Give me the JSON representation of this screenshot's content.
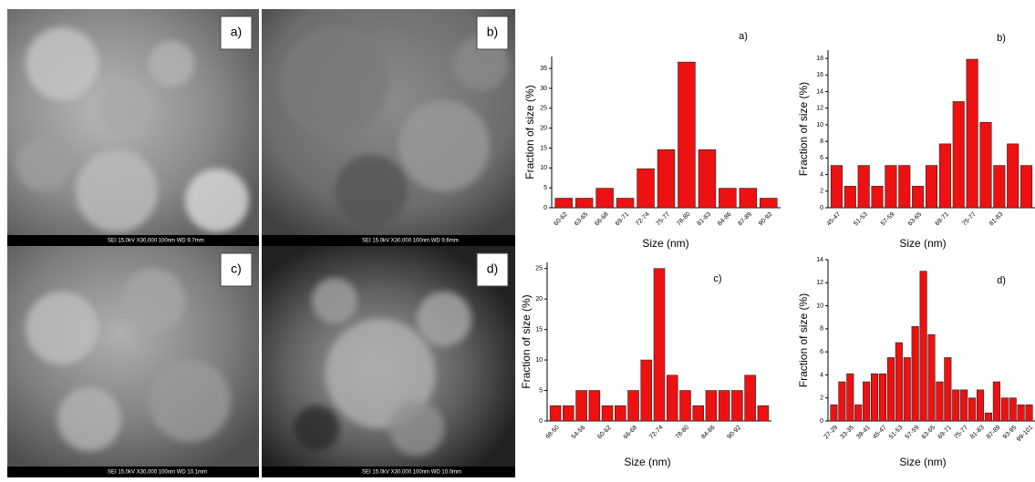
{
  "images": [
    {
      "label": "a)",
      "footer": "SEI    15.0kV   X30,000    100nm    WD 9.7mm"
    },
    {
      "label": "b)",
      "footer": "SEI    15.0kV   X30,000    100nm    WD 9.6mm"
    },
    {
      "label": "c)",
      "footer": "SEI    15.0kV   X30,000    100nm    WD 10.1mm"
    },
    {
      "label": "d)",
      "footer": "SEI    15.0kV   X30,000    100nm    WD 10.0mm"
    }
  ],
  "chart_data": [
    {
      "type": "bar",
      "title": "a)",
      "xlabel": "Size (nm)",
      "ylabel": "Fraction of size (%)",
      "color": "#ee1111",
      "categories": [
        "60-62",
        "63-65",
        "66-68",
        "69-71",
        "72-74",
        "75-77",
        "78-80",
        "81-83",
        "84-86",
        "87-89",
        "90-92"
      ],
      "values": [
        2.4,
        2.4,
        4.9,
        2.4,
        9.8,
        14.6,
        36.6,
        14.6,
        4.9,
        4.9,
        2.4
      ],
      "ylim": [
        0,
        38
      ],
      "yticks": [
        0,
        5,
        10,
        15,
        20,
        25,
        30,
        35
      ]
    },
    {
      "type": "bar",
      "title": "b)",
      "xlabel": "Size (nm)",
      "ylabel": "Fraction of size (%)",
      "color": "#ee1111",
      "categories": [
        "45-47",
        null,
        "51-53",
        null,
        "57-59",
        null,
        "63-65",
        null,
        "69-71",
        null,
        "75-77",
        null,
        "81-83",
        null,
        null
      ],
      "values": [
        5.1,
        2.6,
        5.1,
        2.6,
        5.1,
        5.1,
        2.6,
        5.1,
        7.7,
        12.8,
        17.9,
        10.3,
        5.1,
        7.7,
        5.1
      ],
      "ylim": [
        0,
        19
      ],
      "yticks": [
        0,
        2,
        4,
        6,
        8,
        10,
        12,
        14,
        16,
        18
      ]
    },
    {
      "type": "bar",
      "title": "c)",
      "xlabel": "Size (nm)",
      "ylabel": "Fraction of size (%)",
      "color": "#ee1111",
      "categories": [
        "48-50",
        null,
        "54-56",
        null,
        "60-62",
        null,
        "66-68",
        null,
        "72-74",
        null,
        "78-80",
        null,
        "84-86",
        null,
        "90-92",
        null,
        null
      ],
      "values": [
        2.5,
        2.5,
        5,
        5,
        2.5,
        2.5,
        5,
        10,
        25,
        7.5,
        5,
        2.5,
        5,
        5,
        5,
        7.5,
        2.5
      ],
      "ylim": [
        0,
        26
      ],
      "yticks": [
        0,
        5,
        10,
        15,
        20,
        25
      ]
    },
    {
      "type": "bar",
      "title": "d)",
      "xlabel": "Size (nm)",
      "ylabel": "Fraction of size (%)",
      "color": "#ee1111",
      "categories": [
        "27-29",
        null,
        "33-35",
        null,
        "39-41",
        null,
        "45-47",
        null,
        "51-53",
        null,
        "57-59",
        null,
        "63-65",
        null,
        "69-71",
        null,
        "75-77",
        null,
        "81-83",
        null,
        "87-89",
        null,
        "93-95",
        null,
        "99-101"
      ],
      "values": [
        1.4,
        3.4,
        4.1,
        1.4,
        3.4,
        4.1,
        4.1,
        5.5,
        6.8,
        5.5,
        8.2,
        13,
        7.5,
        3.4,
        5.5,
        2.7,
        2.7,
        2.0,
        2.7,
        0.7,
        3.4,
        2.0,
        2.0,
        1.4,
        1.4
      ],
      "ylim": [
        0,
        14
      ],
      "yticks": [
        0,
        2,
        4,
        6,
        8,
        10,
        12,
        14
      ]
    }
  ]
}
